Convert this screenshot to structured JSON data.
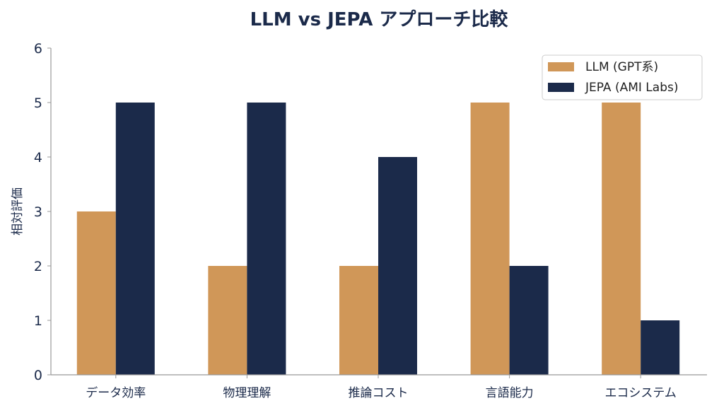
{
  "chart_data": {
    "type": "bar",
    "title": "LLM vs JEPA アプローチ比較",
    "xlabel": "",
    "ylabel": "相対評価",
    "ylim": [
      0,
      6
    ],
    "yticks": [
      "0",
      "1",
      "2",
      "3",
      "4",
      "5",
      "6"
    ],
    "categories": [
      "データ効率",
      "物理理解",
      "推論コスト",
      "言語能力",
      "エコシステム"
    ],
    "series": [
      {
        "name": "LLM (GPT系)",
        "values": [
          3,
          2,
          2,
          5,
          5
        ],
        "color": "#D09758"
      },
      {
        "name": "JEPA (AMI Labs)",
        "values": [
          5,
          5,
          4,
          2,
          1
        ],
        "color": "#1B2A4A"
      }
    ],
    "grid": false,
    "legend": "top-right",
    "text_color": "#1B2A4A"
  }
}
